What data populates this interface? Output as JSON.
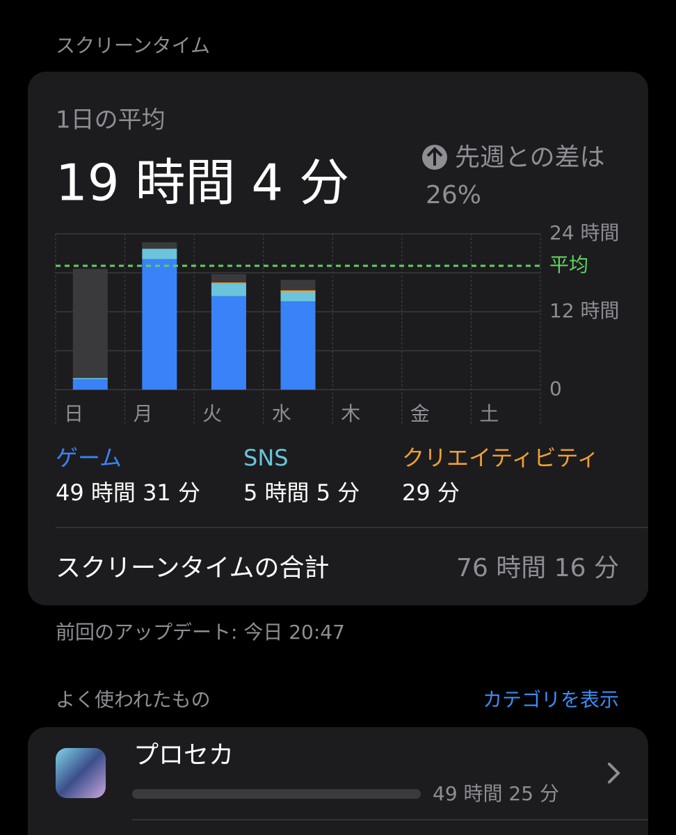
{
  "header": "スクリーンタイム",
  "card": {
    "average_label": "1日の平均",
    "average_value": "19 時間 4 分",
    "change_label": "先週との差は",
    "change_value": "26%",
    "chart_data": {
      "type": "stacked_bar",
      "categories": [
        "日",
        "月",
        "火",
        "水",
        "木",
        "金",
        "土"
      ],
      "series": [
        {
          "name": "ゲーム",
          "color": "#3a82f7",
          "total": "49 時間 31 分",
          "values": [
            1.6,
            20.1,
            14.4,
            13.6,
            null,
            null,
            null
          ]
        },
        {
          "name": "SNS",
          "color": "#6ac4dc",
          "total": "5 時間 5 分",
          "values": [
            0.2,
            1.6,
            1.9,
            1.4,
            null,
            null,
            null
          ]
        },
        {
          "name": "クリエイティビティ",
          "color": "#f0a030",
          "total": "29 分",
          "values": [
            0,
            0,
            0.2,
            0.3,
            null,
            null,
            null
          ]
        },
        {
          "color": "#3a3a3c",
          "values": [
            16.8,
            1.0,
            1.3,
            1.6,
            null,
            null,
            null
          ]
        }
      ],
      "ylim": [
        0,
        24
      ],
      "yticks": [
        0,
        {
          "value": 12,
          "label": "12 時間"
        },
        {
          "value": 24,
          "label": "24 時間"
        }
      ],
      "minor_grid": [
        6,
        18
      ],
      "average": {
        "value": 19.07,
        "label": "平均",
        "color": "#5fd35f"
      }
    },
    "total_label": "スクリーンタイムの合計",
    "total_value": "76 時間 16 分"
  },
  "updated": "前回のアップデート: 今日 20:47",
  "most_used": {
    "title": "よく使われたもの",
    "link": "カテゴリを表示",
    "apps": [
      {
        "name": "プロセカ",
        "time": "49 時間 25 分"
      }
    ]
  }
}
